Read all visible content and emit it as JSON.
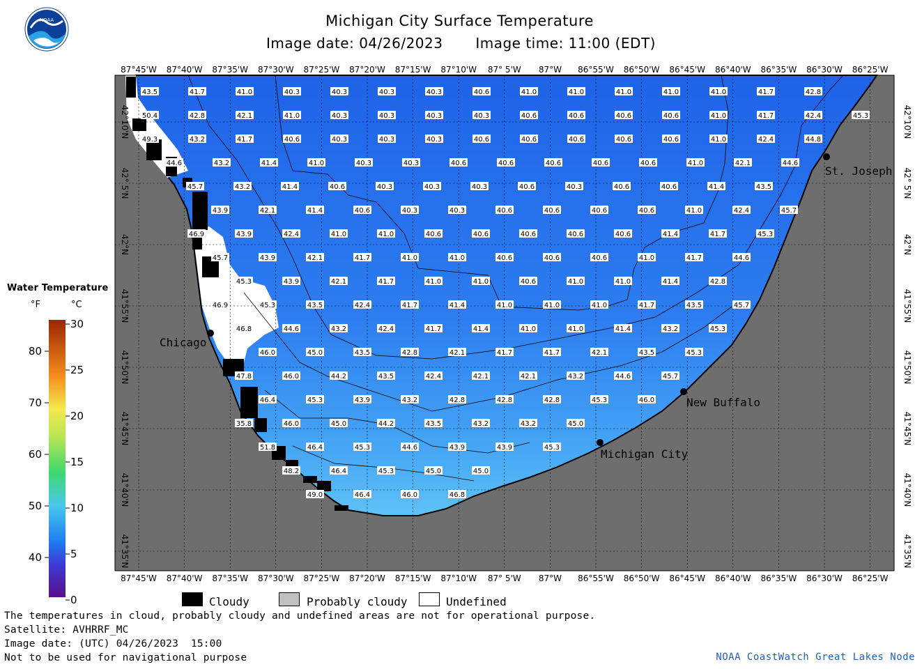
{
  "title": "Michigan City Surface Temperature",
  "image_date": "Image date: 04/26/2023",
  "image_time": "Image time: 11:00 (EDT)",
  "legend": {
    "title": "Water Temperature",
    "unit_f": "°F",
    "unit_c": "°C",
    "f_ticks": [
      "80",
      "70",
      "60",
      "50",
      "40"
    ],
    "c_ticks": [
      "30",
      "25",
      "20",
      "15",
      "10",
      "5",
      "0"
    ],
    "colors": {
      "cold": "#5a0f8a",
      "mid": "#1e7cf0",
      "warm": "#9a2500"
    }
  },
  "key": {
    "cloudy": "Cloudy",
    "probably_cloudy": "Probably cloudy",
    "undefined": "Undefined"
  },
  "lon_labels": [
    "87°45'W",
    "87°40'W",
    "87°35'W",
    "87°30'W",
    "87°25'W",
    "87°20'W",
    "87°15'W",
    "87°10'W",
    "87° 5'W",
    "87°W",
    "86°55'W",
    "86°50'W",
    "86°45'W",
    "86°40'W",
    "86°35'W",
    "86°30'W",
    "86°25'W"
  ],
  "lat_labels": [
    "42°10'N",
    "42° 5'N",
    "42°N",
    "41°55'N",
    "41°50'N",
    "41°45'N",
    "41°40'N",
    "41°35'N"
  ],
  "cities": [
    {
      "name": "St. Joseph"
    },
    {
      "name": "Chicago"
    },
    {
      "name": "New Buffalo"
    },
    {
      "name": "Michigan City"
    }
  ],
  "temps": [
    [
      "43.5",
      "41.7",
      "41.0",
      "40.3",
      "40.3",
      "40.3",
      "40.3",
      "40.6",
      "41.0",
      "41.0",
      "41.0",
      "41.0",
      "41.0",
      "41.7",
      "42.8"
    ],
    [
      "50.4",
      "42.8",
      "42.1",
      "41.0",
      "40.3",
      "40.3",
      "40.3",
      "40.3",
      "40.6",
      "40.6",
      "40.6",
      "40.6",
      "41.0",
      "41.7",
      "42.4",
      "45.3"
    ],
    [
      "49.3",
      "43.2",
      "41.7",
      "40.6",
      "40.3",
      "40.3",
      "40.3",
      "40.6",
      "40.6",
      "40.6",
      "40.6",
      "40.6",
      "41.0",
      "42.4",
      "44.8"
    ],
    [
      "44.6",
      "43.2",
      "41.4",
      "41.0",
      "40.3",
      "40.3",
      "40.6",
      "40.6",
      "40.6",
      "40.6",
      "40.6",
      "41.0",
      "42.1",
      "44.6"
    ],
    [
      "45.7",
      "43.2",
      "41.4",
      "40.6",
      "40.3",
      "40.3",
      "40.3",
      "40.6",
      "40.3",
      "40.6",
      "40.6",
      "41.4",
      "43.5"
    ],
    [
      "43.9",
      "42.1",
      "41.4",
      "40.6",
      "40.3",
      "40.3",
      "40.6",
      "40.6",
      "40.6",
      "40.6",
      "41.0",
      "42.4",
      "45.7"
    ],
    [
      "46.9",
      "43.9",
      "42.4",
      "41.0",
      "41.0",
      "40.6",
      "40.6",
      "40.6",
      "40.6",
      "40.6",
      "41.4",
      "41.7",
      "45.3"
    ],
    [
      "45.7",
      "43.9",
      "42.1",
      "41.7",
      "41.0",
      "41.0",
      "40.6",
      "40.6",
      "40.6",
      "41.0",
      "41.7",
      "44.6"
    ],
    [
      "45.3",
      "43.9",
      "42.1",
      "41.7",
      "41.0",
      "41.0",
      "40.6",
      "41.0",
      "41.0",
      "41.4",
      "42.8"
    ],
    [
      "46.9",
      "45.3",
      "43.5",
      "42.4",
      "41.7",
      "41.4",
      "41.0",
      "41.0",
      "41.0",
      "41.7",
      "43.5",
      "45.7"
    ],
    [
      "46.8",
      "44.6",
      "43.2",
      "42.4",
      "41.7",
      "41.4",
      "41.0",
      "41.0",
      "41.4",
      "43.2",
      "45.3"
    ],
    [
      "46.0",
      "45.0",
      "43.5",
      "42.8",
      "42.1",
      "41.7",
      "41.7",
      "42.1",
      "43.5",
      "45.3"
    ],
    [
      "47.8",
      "46.0",
      "44.2",
      "43.5",
      "42.4",
      "42.1",
      "42.1",
      "43.2",
      "44.6",
      "45.7"
    ],
    [
      "46.4",
      "45.3",
      "43.9",
      "43.2",
      "42.8",
      "42.8",
      "42.8",
      "45.3",
      "46.0"
    ],
    [
      "35.8",
      "46.0",
      "45.0",
      "44.2",
      "43.5",
      "43.2",
      "43.2",
      "45.0"
    ],
    [
      "51.8",
      "46.4",
      "45.3",
      "44.6",
      "43.9",
      "43.9",
      "45.3"
    ],
    [
      "48.2",
      "46.4",
      "45.3",
      "45.0",
      "45.0"
    ],
    [
      "49.0",
      "46.4",
      "46.0",
      "46.8"
    ]
  ],
  "footer": {
    "note": "The temperatures in cloud, probably cloudy and undefined areas are not for operational purpose.",
    "satellite": "Satellite: AVHRRF_MC",
    "utc": "Image date: (UTC) 04/26/2023  15:00",
    "nav": "Not to be used for navigational purpose",
    "credit": "NOAA CoastWatch Great Lakes Node"
  }
}
